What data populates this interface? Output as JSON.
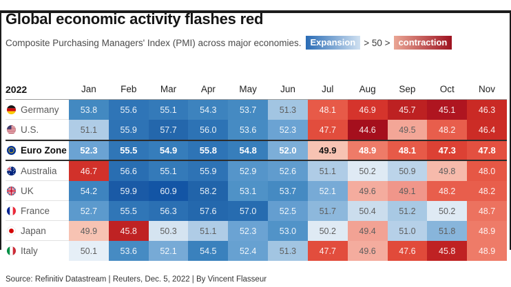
{
  "header": {
    "title": "Global economic activity flashes red",
    "subtitle": "Composite Purchasing Managers' Index (PMI) across major economies.",
    "legend": {
      "expansion_label": "Expansion",
      "threshold_text": "> 50 >",
      "contraction_label": "contraction",
      "expansion_gradient": [
        "#2a6cb5",
        "#cfe0f1"
      ],
      "contraction_gradient": [
        "#eaa695",
        "#9e1220"
      ]
    }
  },
  "chart_data": {
    "type": "heatmap",
    "title": "Global economic activity flashes red",
    "subtitle": "Composite Purchasing Managers' Index (PMI) across major economies.",
    "year_label": "2022",
    "midpoint": 50,
    "categories": [
      "Jan",
      "Feb",
      "Mar",
      "Apr",
      "May",
      "Jun",
      "Jul",
      "Aug",
      "Sep",
      "Oct",
      "Nov"
    ],
    "series": [
      {
        "name": "Germany",
        "flag": "germany-flag-icon",
        "bold": false,
        "values": [
          53.8,
          55.6,
          55.1,
          54.3,
          53.7,
          51.3,
          48.1,
          46.9,
          45.7,
          45.1,
          46.3
        ]
      },
      {
        "name": "U.S.",
        "flag": "us-flag-icon",
        "bold": false,
        "values": [
          51.1,
          55.9,
          57.7,
          56.0,
          53.6,
          52.3,
          47.7,
          44.6,
          49.5,
          48.2,
          46.4
        ]
      },
      {
        "name": "Euro Zone",
        "flag": "euro-zone-flag-icon",
        "bold": true,
        "values": [
          52.3,
          55.5,
          54.9,
          55.8,
          54.8,
          52.0,
          49.9,
          48.9,
          48.1,
          47.3,
          47.8
        ]
      },
      {
        "name": "Australia",
        "flag": "australia-flag-icon",
        "bold": false,
        "values": [
          46.7,
          56.6,
          55.1,
          55.9,
          52.9,
          52.6,
          51.1,
          50.2,
          50.9,
          49.8,
          48.0
        ]
      },
      {
        "name": "UK",
        "flag": "uk-flag-icon",
        "bold": false,
        "values": [
          54.2,
          59.9,
          60.9,
          58.2,
          53.1,
          53.7,
          52.1,
          49.6,
          49.1,
          48.2,
          48.2
        ]
      },
      {
        "name": "France",
        "flag": "france-flag-icon",
        "bold": false,
        "values": [
          52.7,
          55.5,
          56.3,
          57.6,
          57.0,
          52.5,
          51.7,
          50.4,
          51.2,
          50.2,
          48.7
        ]
      },
      {
        "name": "Japan",
        "flag": "japan-flag-icon",
        "bold": false,
        "values": [
          49.9,
          45.8,
          50.3,
          51.1,
          52.3,
          53.0,
          50.2,
          49.4,
          51.0,
          51.8,
          48.9
        ]
      },
      {
        "name": "Italy",
        "flag": "italy-flag-icon",
        "bold": false,
        "values": [
          50.1,
          53.6,
          52.1,
          54.5,
          52.4,
          51.3,
          47.7,
          49.6,
          47.6,
          45.8,
          48.9
        ]
      }
    ],
    "color_scale": {
      "expansion_stops": [
        [
          0,
          "#eef4fa"
        ],
        [
          0.2,
          "#dfeaf4"
        ],
        [
          0.4,
          "#cbdded"
        ],
        [
          0.9,
          "#bcd4ea"
        ],
        [
          1.3,
          "#a2c5e2"
        ],
        [
          1.8,
          "#88b5db"
        ],
        [
          2.3,
          "#6ba3d3"
        ],
        [
          3.0,
          "#5193c8"
        ],
        [
          3.8,
          "#4389c1"
        ],
        [
          4.5,
          "#3a81bd"
        ],
        [
          5.5,
          "#3076b7"
        ],
        [
          6.5,
          "#2a6fb2"
        ],
        [
          8.2,
          "#2164aa"
        ],
        [
          9.9,
          "#1a5aa6"
        ],
        [
          10.9,
          "#1355a5"
        ]
      ],
      "contraction_stops": [
        [
          0,
          "#fbe3dc"
        ],
        [
          0.1,
          "#f7c3b3"
        ],
        [
          0.3,
          "#f5b2a4"
        ],
        [
          0.5,
          "#f3a697"
        ],
        [
          0.9,
          "#f0968a"
        ],
        [
          1.1,
          "#ee7b68"
        ],
        [
          1.4,
          "#eb6d5a"
        ],
        [
          1.9,
          "#e75a48"
        ],
        [
          2.4,
          "#e14a3a"
        ],
        [
          3.1,
          "#d5342c"
        ],
        [
          3.7,
          "#ca2a25"
        ],
        [
          4.4,
          "#bb1f22"
        ],
        [
          5.0,
          "#ac131f"
        ],
        [
          5.5,
          "#a30e1d"
        ]
      ]
    }
  },
  "footer": {
    "source": "Source: Refinitiv Datastream | Reuters, Dec. 5, 2022 | By Vincent Flasseur"
  }
}
